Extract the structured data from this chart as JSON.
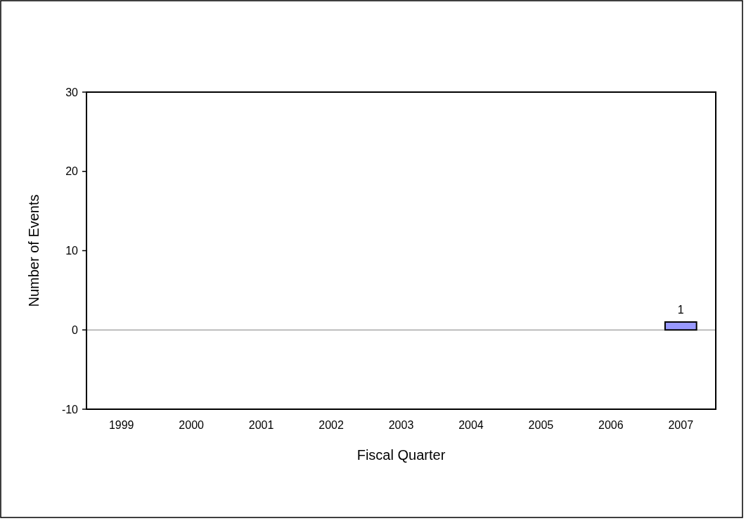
{
  "chart_data": {
    "type": "bar",
    "xlabel": "Fiscal Quarter",
    "ylabel": "Number of Events",
    "categories": [
      "1999",
      "2000",
      "2001",
      "2002",
      "2003",
      "2004",
      "2005",
      "2006",
      "2007"
    ],
    "values": [
      null,
      null,
      null,
      null,
      null,
      null,
      null,
      null,
      1
    ],
    "value_labels": [
      null,
      null,
      null,
      null,
      null,
      null,
      null,
      null,
      "1"
    ],
    "color": "#9999ff",
    "ylim": [
      -10,
      30
    ],
    "yticks": [
      -10,
      0,
      10,
      20,
      30
    ],
    "ref_lines": [
      {
        "axis": "y",
        "value": 0,
        "color": "#808080"
      }
    ]
  }
}
